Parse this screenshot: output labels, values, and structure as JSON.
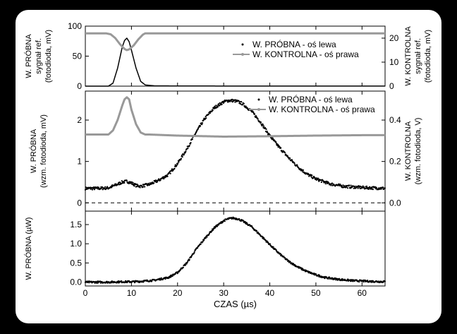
{
  "chart_data": [
    {
      "type": "line",
      "panel": "top",
      "ylabel_left": [
        "W. PRÓBNA",
        "sygnał ref.",
        "(fotodioda, mV)"
      ],
      "ylabel_right": [
        "W. KONTROLNA",
        "sygnał ref.",
        "(fotodioda, mV)"
      ],
      "ylim_left": [
        0,
        100
      ],
      "ylim_right": [
        0,
        25
      ],
      "yticks_left": [
        "0",
        "50",
        "100"
      ],
      "yticks_right": [
        "0",
        "10",
        "20"
      ],
      "xlim": [
        0,
        65
      ],
      "legend": {
        "placement": "top-right",
        "entries": [
          "W. PRÓBNA - oś lewa",
          "W. KONTROLNA - oś prawa"
        ]
      },
      "series": [
        {
          "name": "W. PRÓBNA - oś lewa",
          "axis": "left",
          "color": "#000000",
          "x": [
            0,
            5,
            6,
            7,
            8,
            8.5,
            9,
            9.5,
            10,
            11,
            12,
            13,
            15,
            20,
            30,
            40,
            50,
            60,
            65
          ],
          "y": [
            0,
            0,
            5,
            30,
            65,
            76,
            80,
            74,
            60,
            30,
            8,
            2,
            0.5,
            0.3,
            0.2,
            0.2,
            0.2,
            0.2,
            0.2
          ]
        },
        {
          "name": "W. KONTROLNA - oś prawa",
          "axis": "right",
          "color": "#999999",
          "x": [
            0,
            4.5,
            5.5,
            6.5,
            7.5,
            8.5,
            9,
            9.5,
            10.5,
            11.5,
            12.5,
            13,
            15,
            20,
            30,
            40,
            50,
            60,
            65
          ],
          "y": [
            22,
            22,
            21.6,
            20,
            17.5,
            15.5,
            15,
            15.3,
            17,
            19.5,
            21.5,
            22,
            22,
            22,
            22,
            22,
            22,
            22,
            22
          ]
        }
      ]
    },
    {
      "type": "scatter",
      "panel": "middle",
      "ylabel_left": [
        "W. PRÓBNA",
        "(wzm. fotodioda, mV)"
      ],
      "ylabel_right": [
        "W. KONTROLNA",
        "(wzm. fotodioda, V)"
      ],
      "ylim_left": [
        -0.2,
        2.7
      ],
      "ylim_right": [
        -0.04,
        0.54
      ],
      "yticks_left": [
        "0",
        "1",
        "2"
      ],
      "yticks_right": [
        "0.0",
        "0.2",
        "0.4"
      ],
      "xlim": [
        0,
        65
      ],
      "reference_line": {
        "y": 0,
        "style": "dashed"
      },
      "legend": {
        "placement": "top-right",
        "entries": [
          "W. PRÓBNA - oś lewa",
          "W. KONTROLNA - oś prawa"
        ]
      },
      "series": [
        {
          "name": "W. PRÓBNA - oś lewa",
          "axis": "left",
          "color": "#000000",
          "x": [
            0,
            3,
            5,
            7,
            8,
            9,
            10,
            11,
            12,
            14,
            16,
            18,
            20,
            22,
            24,
            26,
            28,
            30,
            31,
            32,
            33,
            34,
            36,
            38,
            40,
            42,
            44,
            46,
            48,
            50,
            53,
            56,
            60,
            65
          ],
          "y": [
            0.35,
            0.35,
            0.36,
            0.45,
            0.5,
            0.52,
            0.48,
            0.42,
            0.4,
            0.45,
            0.55,
            0.68,
            0.95,
            1.3,
            1.7,
            2.05,
            2.3,
            2.44,
            2.47,
            2.47,
            2.45,
            2.4,
            2.22,
            1.95,
            1.62,
            1.35,
            1.1,
            0.88,
            0.7,
            0.58,
            0.46,
            0.4,
            0.37,
            0.35
          ]
        },
        {
          "name": "W. KONTROLNA - oś prawa",
          "axis": "right",
          "color": "#999999",
          "x": [
            0,
            5,
            6,
            7,
            8,
            8.5,
            9,
            9.5,
            10,
            11,
            12,
            13,
            14,
            20,
            30,
            40,
            50,
            60,
            65
          ],
          "y": [
            0.33,
            0.33,
            0.35,
            0.4,
            0.47,
            0.5,
            0.51,
            0.5,
            0.45,
            0.38,
            0.34,
            0.33,
            0.33,
            0.325,
            0.32,
            0.322,
            0.325,
            0.327,
            0.327
          ]
        }
      ]
    },
    {
      "type": "scatter",
      "panel": "bottom",
      "ylabel_left": [
        "W. PRÓBNA (µW)"
      ],
      "ylim_left": [
        -0.1,
        1.85
      ],
      "yticks_left": [
        "0.0",
        "0.5",
        "1.0",
        "1.5"
      ],
      "xlim": [
        0,
        65
      ],
      "xlabel": "CZAS (µs)",
      "xticks": [
        "0",
        "10",
        "20",
        "30",
        "40",
        "50",
        "60"
      ],
      "series": [
        {
          "axis": "left",
          "color": "#000000",
          "x": [
            0,
            5,
            8,
            10,
            12,
            15,
            18,
            20,
            22,
            24,
            26,
            28,
            30,
            31,
            32,
            33,
            34,
            36,
            38,
            40,
            42,
            44,
            46,
            48,
            50,
            52,
            55,
            58,
            62,
            65
          ],
          "y": [
            0,
            0,
            0.01,
            0.01,
            0.02,
            0.05,
            0.12,
            0.25,
            0.5,
            0.85,
            1.15,
            1.42,
            1.6,
            1.65,
            1.67,
            1.65,
            1.6,
            1.45,
            1.22,
            0.98,
            0.75,
            0.55,
            0.4,
            0.28,
            0.19,
            0.12,
            0.07,
            0.04,
            0.02,
            0.01
          ]
        }
      ]
    }
  ]
}
